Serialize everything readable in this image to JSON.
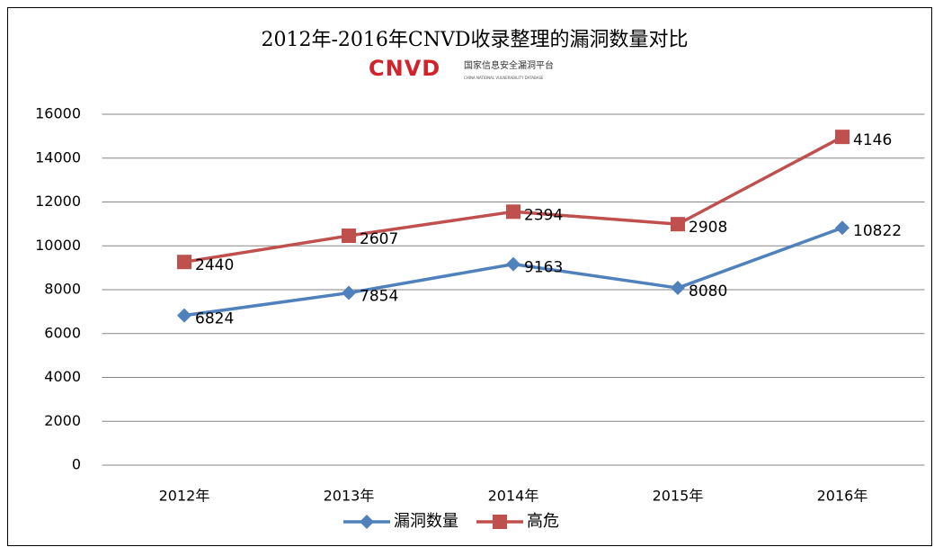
{
  "chart_data": {
    "type": "stacked_line",
    "title": "2012年-2016年CNVD收录整理的漏洞数量对比",
    "logo": {
      "mark": "CNVD",
      "name": "国家信息安全漏洞平台",
      "subtitle": "CHINA NATIONAL VULNERABILITY DATABASE"
    },
    "categories": [
      "2012年",
      "2013年",
      "2014年",
      "2015年",
      "2016年"
    ],
    "series": [
      {
        "name": "漏洞数量",
        "color": "#4f81bd",
        "marker": "diamond",
        "values": [
          6824,
          7854,
          9163,
          8080,
          10822
        ]
      },
      {
        "name": "高危",
        "color": "#c0504d",
        "marker": "square",
        "values": [
          2440,
          2607,
          2394,
          2908,
          4146
        ]
      }
    ],
    "ylim": [
      0,
      16000
    ],
    "yticks": [
      0,
      2000,
      4000,
      6000,
      8000,
      10000,
      12000,
      14000,
      16000
    ],
    "grid": true,
    "legend": "bottom"
  }
}
